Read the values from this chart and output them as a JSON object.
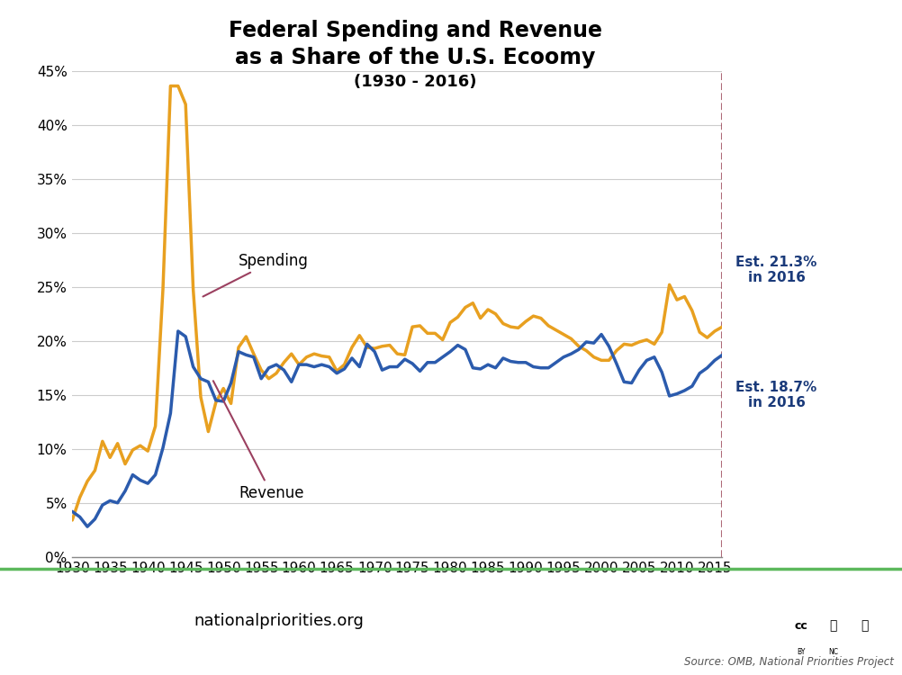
{
  "title_line1": "Federal Spending and Revenue",
  "title_line2": "as a Share of the U.S. Ecoomy",
  "title_line3": "(1930 - 2016)",
  "spending_color": "#E8A020",
  "revenue_color": "#2B5BAD",
  "annotation_color": "#9B4060",
  "background_color": "#FFFFFF",
  "footer_line_color": "#5CB85C",
  "logo_bg": "#2E7D4F",
  "ylim": [
    0,
    45
  ],
  "yticks": [
    0,
    5,
    10,
    15,
    20,
    25,
    30,
    35,
    40,
    45
  ],
  "ytick_labels": [
    "0%",
    "5%",
    "10%",
    "15%",
    "20%",
    "25%",
    "30%",
    "35%",
    "40%",
    "45%"
  ],
  "xlim": [
    1930,
    2019
  ],
  "xticks": [
    1930,
    1935,
    1940,
    1945,
    1950,
    1955,
    1960,
    1965,
    1970,
    1975,
    1980,
    1985,
    1990,
    1995,
    2000,
    2005,
    2010,
    2015
  ],
  "years": [
    1930,
    1931,
    1932,
    1933,
    1934,
    1935,
    1936,
    1937,
    1938,
    1939,
    1940,
    1941,
    1942,
    1943,
    1944,
    1945,
    1946,
    1947,
    1948,
    1949,
    1950,
    1951,
    1952,
    1953,
    1954,
    1955,
    1956,
    1957,
    1958,
    1959,
    1960,
    1961,
    1962,
    1963,
    1964,
    1965,
    1966,
    1967,
    1968,
    1969,
    1970,
    1971,
    1972,
    1973,
    1974,
    1975,
    1976,
    1977,
    1978,
    1979,
    1980,
    1981,
    1982,
    1983,
    1984,
    1985,
    1986,
    1987,
    1988,
    1989,
    1990,
    1991,
    1992,
    1993,
    1994,
    1995,
    1996,
    1997,
    1998,
    1999,
    2000,
    2001,
    2002,
    2003,
    2004,
    2005,
    2006,
    2007,
    2008,
    2009,
    2010,
    2011,
    2012,
    2013,
    2014,
    2015,
    2016
  ],
  "spending": [
    3.4,
    5.5,
    7.0,
    8.0,
    10.7,
    9.2,
    10.5,
    8.6,
    9.9,
    10.3,
    9.8,
    12.1,
    24.8,
    43.6,
    43.6,
    41.9,
    24.8,
    14.8,
    11.6,
    14.3,
    15.6,
    14.2,
    19.4,
    20.4,
    18.8,
    17.3,
    16.5,
    17.0,
    18.0,
    18.8,
    17.8,
    18.5,
    18.8,
    18.6,
    18.5,
    17.2,
    17.8,
    19.4,
    20.5,
    19.4,
    19.3,
    19.5,
    19.6,
    18.8,
    18.7,
    21.3,
    21.4,
    20.7,
    20.7,
    20.1,
    21.7,
    22.2,
    23.1,
    23.5,
    22.1,
    22.9,
    22.5,
    21.6,
    21.3,
    21.2,
    21.8,
    22.3,
    22.1,
    21.4,
    21.0,
    20.6,
    20.2,
    19.5,
    19.1,
    18.5,
    18.2,
    18.2,
    19.1,
    19.7,
    19.6,
    19.9,
    20.1,
    19.7,
    20.8,
    25.2,
    23.8,
    24.1,
    22.8,
    20.8,
    20.3,
    20.9,
    21.3
  ],
  "revenue": [
    4.2,
    3.7,
    2.8,
    3.5,
    4.8,
    5.2,
    5.0,
    6.1,
    7.6,
    7.1,
    6.8,
    7.6,
    10.1,
    13.3,
    20.9,
    20.4,
    17.6,
    16.5,
    16.2,
    14.5,
    14.4,
    16.1,
    19.0,
    18.7,
    18.5,
    16.5,
    17.5,
    17.8,
    17.3,
    16.2,
    17.8,
    17.8,
    17.6,
    17.8,
    17.6,
    17.0,
    17.4,
    18.4,
    17.6,
    19.7,
    19.0,
    17.3,
    17.6,
    17.6,
    18.3,
    17.9,
    17.2,
    18.0,
    18.0,
    18.5,
    19.0,
    19.6,
    19.2,
    17.5,
    17.4,
    17.8,
    17.5,
    18.4,
    18.1,
    18.0,
    18.0,
    17.6,
    17.5,
    17.5,
    18.0,
    18.5,
    18.8,
    19.2,
    19.9,
    19.8,
    20.6,
    19.5,
    17.9,
    16.2,
    16.1,
    17.3,
    18.2,
    18.5,
    17.1,
    14.9,
    15.1,
    15.4,
    15.8,
    17.0,
    17.5,
    18.2,
    18.7
  ],
  "spending_2016": 21.3,
  "revenue_2016": 18.7,
  "footer_text": "nationalpriorities.org",
  "source_text": "Source: OMB, National Priorities Project"
}
